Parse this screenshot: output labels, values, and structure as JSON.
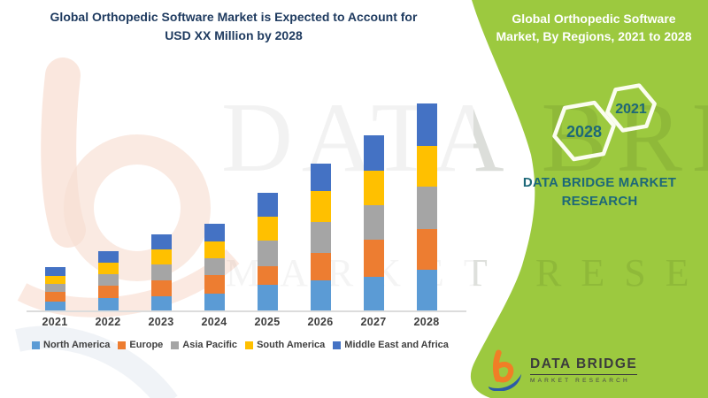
{
  "header": {
    "title_line1": "Global Orthopedic Software Market is Expected to Account for",
    "title_line2": "USD XX Million by 2028"
  },
  "chart_data": {
    "type": "bar",
    "stacked": true,
    "title": "Global Orthopedic Software Market is Expected to Account for USD XX Million by 2028",
    "xlabel": "",
    "ylabel": "",
    "value_note": "Y-axis values not shown in source (USD XX Million); values are relative estimated segment heights",
    "ylim": [
      0,
      250
    ],
    "grid": false,
    "legend_position": "bottom",
    "categories": [
      "2021",
      "2022",
      "2023",
      "2024",
      "2025",
      "2026",
      "2027",
      "2028"
    ],
    "series": [
      {
        "name": "North America",
        "color": "#5B9BD5",
        "values": [
          10,
          14,
          16,
          19,
          29,
          34,
          38,
          46
        ]
      },
      {
        "name": "Europe",
        "color": "#ED7D31",
        "values": [
          11,
          14,
          18,
          21,
          21,
          31,
          42,
          46
        ]
      },
      {
        "name": "Asia Pacific",
        "color": "#A5A5A5",
        "values": [
          9,
          13,
          18,
          19,
          29,
          35,
          39,
          48
        ]
      },
      {
        "name": "South America",
        "color": "#FFC000",
        "values": [
          9,
          13,
          17,
          19,
          27,
          35,
          39,
          46
        ]
      },
      {
        "name": "Middle East and Africa",
        "color": "#4472C4",
        "values": [
          10,
          13,
          17,
          20,
          27,
          31,
          40,
          48
        ]
      }
    ]
  },
  "green_panel": {
    "title_line1": "Global Orthopedic Software",
    "title_line2": "Market, By Regions, 2021 to 2028",
    "hexagon_small_year": "2021",
    "hexagon_large_year": "2028",
    "caption": "DATA BRIDGE MARKET RESEARCH"
  },
  "footer_logo": {
    "name_text": "DATA BRIDGE",
    "sub_text": "MARKET RESEARCH"
  },
  "watermark": {
    "line1": "DATA BRIDGE",
    "line2": "MARKET RESEARCH"
  },
  "colors": {
    "panel_green": "#9CC93F",
    "teal_text": "#1D6878",
    "title_navy": "#1E3A5F",
    "axis_text": "#404040",
    "hexagon_outline": "#FBFDF0",
    "logo_orange": "#F07E26",
    "logo_blue": "#2B5BA8",
    "axis_line": "#DCDCDC"
  }
}
